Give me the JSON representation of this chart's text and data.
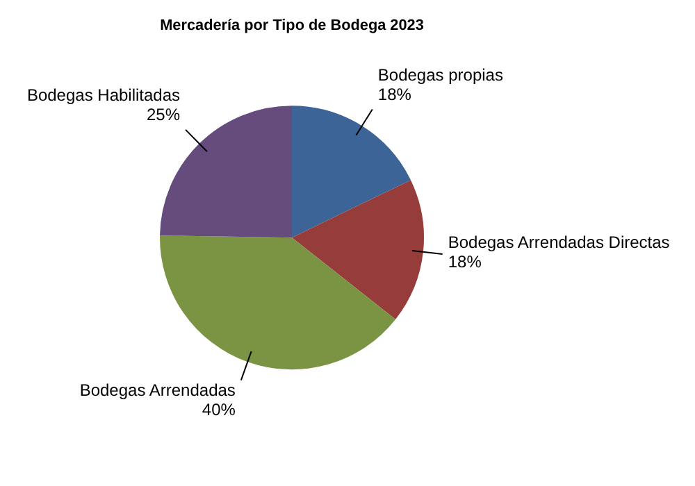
{
  "chart_data": {
    "type": "pie",
    "title": "Mercadería por Tipo de Bodega 2023",
    "categories": [
      "Bodegas propias",
      "Bodegas Arrendadas Directas",
      "Bodegas Arrendadas",
      "Bodegas Habilitadas"
    ],
    "values": [
      18,
      18,
      40,
      25
    ],
    "value_labels": [
      "18%",
      "18%",
      "40%",
      "25%"
    ],
    "colors": [
      "#3d6496",
      "#963d3b",
      "#7a9444",
      "#654c7d"
    ],
    "legend": false
  }
}
